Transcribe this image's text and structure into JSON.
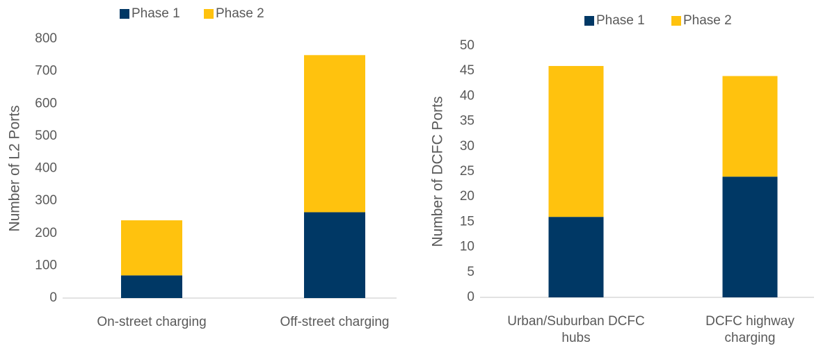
{
  "chart_data": [
    {
      "type": "stacked_bar",
      "y_label": "Number of L2 Ports",
      "categories": [
        "On-street charging",
        "Off-street charging"
      ],
      "series": [
        {
          "name": "Phase 1",
          "color": "#003865",
          "values": [
            70,
            265
          ]
        },
        {
          "name": "Phase 2",
          "color": "#FFC20E",
          "values": [
            170,
            485
          ]
        }
      ],
      "ylim": [
        0,
        800
      ],
      "yticks": [
        0,
        100,
        200,
        300,
        400,
        500,
        600,
        700,
        800
      ]
    },
    {
      "type": "stacked_bar",
      "y_label": "Number of DCFC Ports",
      "categories": [
        "Urban/Suburban DCFC hubs",
        "DCFC highway charging"
      ],
      "series": [
        {
          "name": "Phase 1",
          "color": "#003865",
          "values": [
            16,
            24
          ]
        },
        {
          "name": "Phase 2",
          "color": "#FFC20E",
          "values": [
            30,
            20
          ]
        }
      ],
      "ylim": [
        0,
        50
      ],
      "yticks": [
        0,
        5,
        10,
        15,
        20,
        25,
        30,
        35,
        40,
        45,
        50
      ]
    }
  ]
}
